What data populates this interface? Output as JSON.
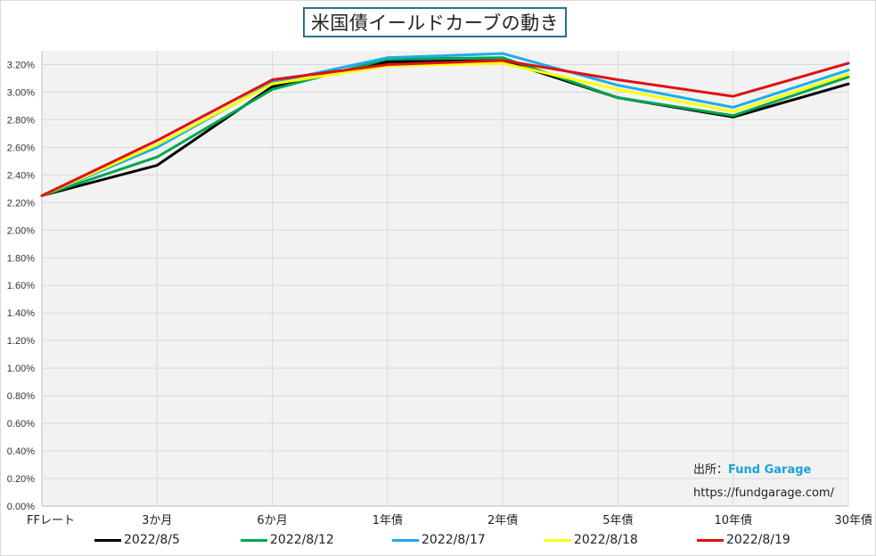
{
  "title": "米国債イールドカーブの動き",
  "source": {
    "label": "出所：",
    "brand": "Fund Garage",
    "url": "https://fundgarage.com/"
  },
  "chart_data": {
    "type": "line",
    "title": "米国債イールドカーブの動き",
    "categories": [
      "FFレート",
      "3か月",
      "6か月",
      "1年債",
      "2年債",
      "5年債",
      "10年債",
      "30年債"
    ],
    "ylim": [
      0,
      3.3
    ],
    "ytick_step": 0.2,
    "ytick_format": "percent_2dp",
    "grid": true,
    "legend_position": "bottom",
    "series": [
      {
        "name": "2022/8/5",
        "color": "#000000",
        "values": [
          2.25,
          2.47,
          3.04,
          3.22,
          3.23,
          2.96,
          2.82,
          3.06
        ]
      },
      {
        "name": "2022/8/12",
        "color": "#00a650",
        "values": [
          2.25,
          2.53,
          3.02,
          3.24,
          3.25,
          2.96,
          2.83,
          3.11
        ]
      },
      {
        "name": "2022/8/17",
        "color": "#1aaee8",
        "values": [
          2.25,
          2.6,
          3.07,
          3.25,
          3.28,
          3.05,
          2.89,
          3.16
        ]
      },
      {
        "name": "2022/8/18",
        "color": "#ffff00",
        "values": [
          2.25,
          2.62,
          3.06,
          3.19,
          3.21,
          3.02,
          2.86,
          3.13
        ]
      },
      {
        "name": "2022/8/19",
        "color": "#e01010",
        "values": [
          2.25,
          2.65,
          3.09,
          3.2,
          3.23,
          3.09,
          2.97,
          3.21
        ]
      }
    ]
  }
}
